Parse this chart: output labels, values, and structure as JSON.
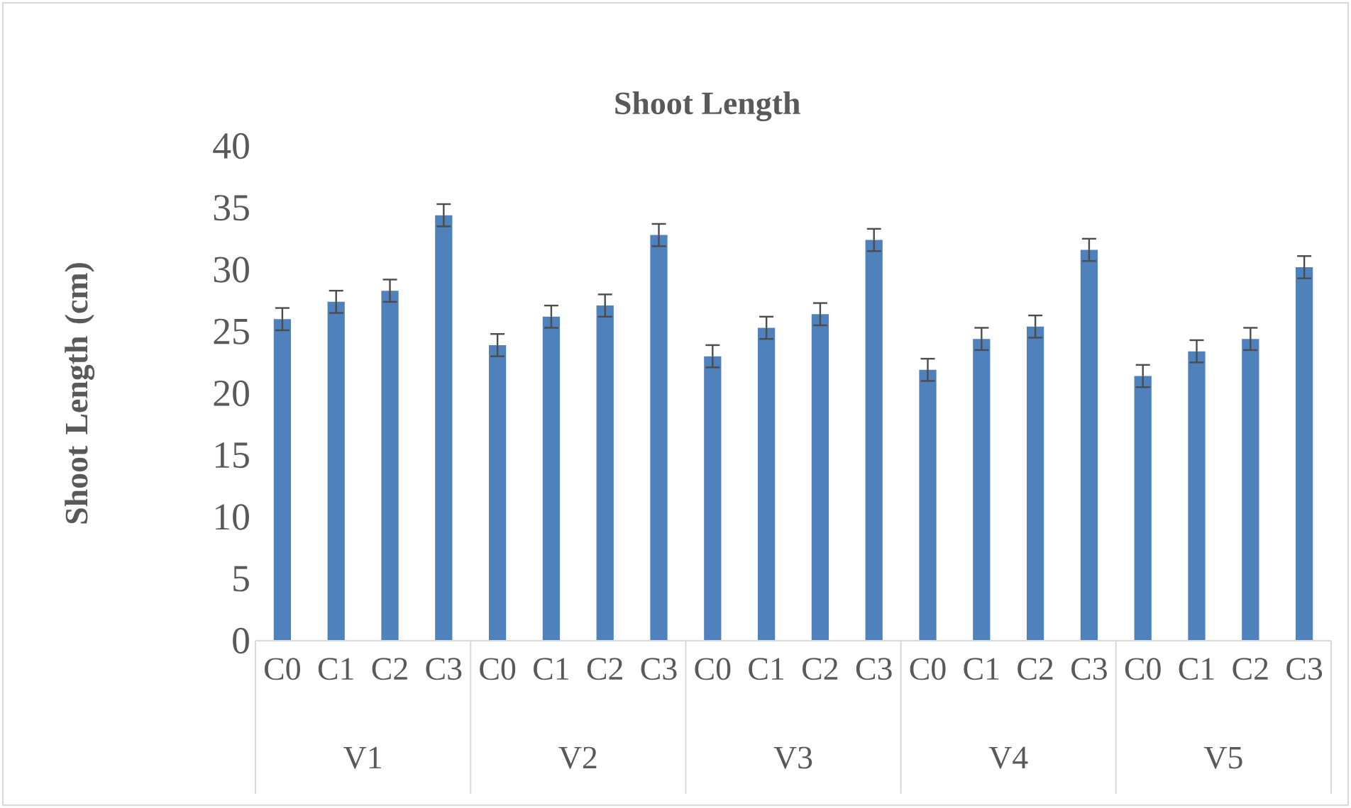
{
  "chart_data": {
    "type": "bar",
    "title": "Shoot Length",
    "ylabel": "Shoot Length (cm)",
    "categories": [
      "C0",
      "C1",
      "C2",
      "C3",
      "C0",
      "C1",
      "C2",
      "C3",
      "C0",
      "C1",
      "C2",
      "C3",
      "C0",
      "C1",
      "C2",
      "C3",
      "C0",
      "C1",
      "C2",
      "C3"
    ],
    "values": [
      26.0,
      27.4,
      28.3,
      34.4,
      23.9,
      26.2,
      27.1,
      32.8,
      23.0,
      25.3,
      26.4,
      32.4,
      21.9,
      24.4,
      25.4,
      31.6,
      21.4,
      23.4,
      24.4,
      30.2
    ],
    "errors": [
      0.9,
      0.9,
      0.9,
      0.9,
      0.9,
      0.9,
      0.9,
      0.9,
      0.9,
      0.9,
      0.9,
      0.9,
      0.9,
      0.9,
      0.9,
      0.9,
      0.9,
      0.9,
      0.9,
      0.9
    ],
    "color": "#4f81bd",
    "annotations": [
      "V1",
      "V2",
      "V3",
      "V4",
      "V5"
    ],
    "ylim": [
      0,
      40
    ],
    "yticks": [
      0,
      5,
      10,
      15,
      20,
      25,
      30,
      35,
      40
    ],
    "grid": false
  }
}
